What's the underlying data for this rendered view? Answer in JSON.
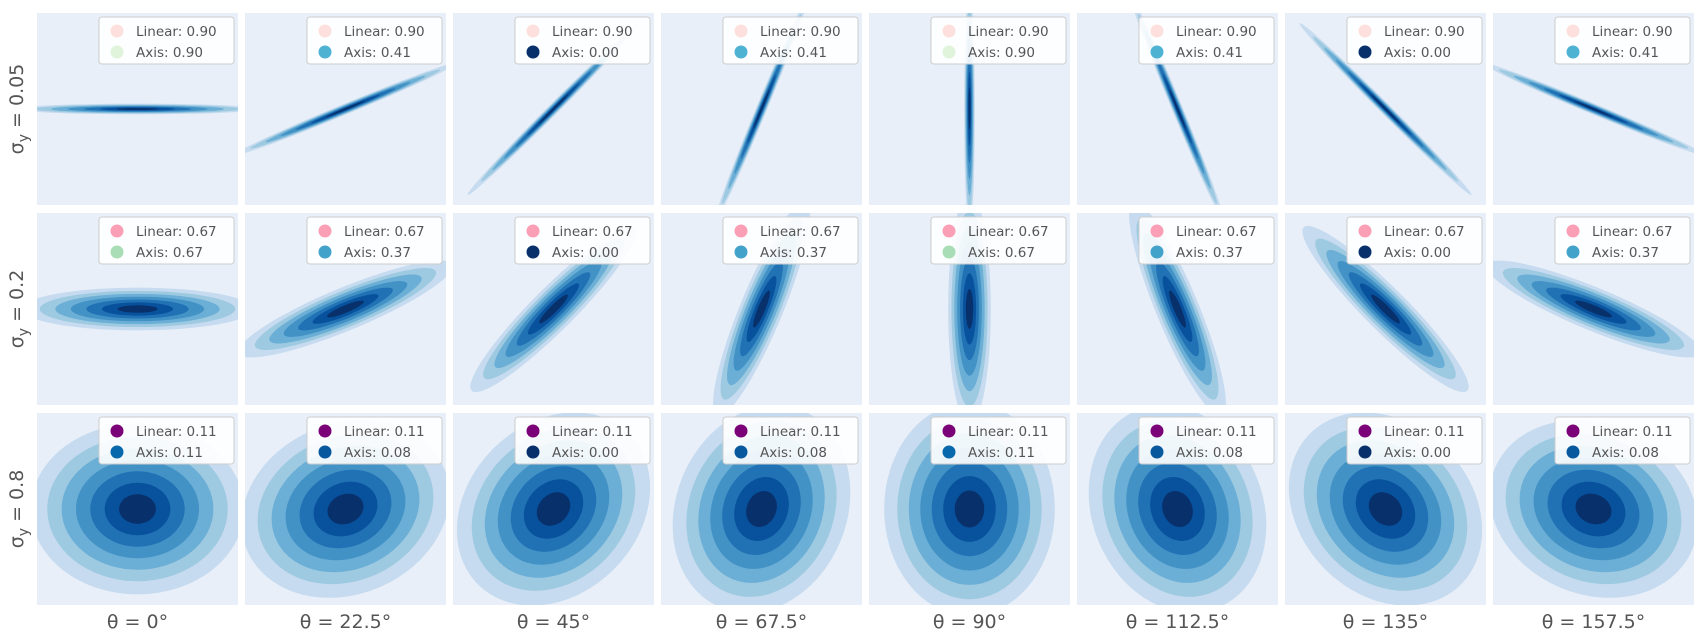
{
  "chart_data": {
    "type": "contour",
    "col_labels": [
      "θ = 0°",
      "θ = 22.5°",
      "θ = 45°",
      "θ = 67.5°",
      "θ = 90°",
      "θ = 112.5°",
      "θ = 135°",
      "θ = 157.5°"
    ],
    "thetas_deg": [
      0,
      22.5,
      45,
      67.5,
      90,
      112.5,
      135,
      157.5
    ],
    "row_label_prefix": "σ",
    "row_label_sub": "y",
    "rows": [
      {
        "sigma_y": "0.05",
        "linear_color": "#fde0dd",
        "linear": [
          "Linear: 0.90",
          "Linear: 0.90",
          "Linear: 0.90",
          "Linear: 0.90",
          "Linear: 0.90",
          "Linear: 0.90",
          "Linear: 0.90",
          "Linear: 0.90"
        ],
        "axis": [
          "Axis: 0.90",
          "Axis: 0.41",
          "Axis: 0.00",
          "Axis: 0.41",
          "Axis: 0.90",
          "Axis: 0.41",
          "Axis: 0.00",
          "Axis: 0.41"
        ],
        "axis_colors": [
          "#e0f3db",
          "#4eb3d3",
          "#08306b",
          "#4eb3d3",
          "#e0f3db",
          "#4eb3d3",
          "#08306b",
          "#4eb3d3"
        ]
      },
      {
        "sigma_y": "0.2",
        "linear_color": "#fa9fb5",
        "linear": [
          "Linear: 0.67",
          "Linear: 0.67",
          "Linear: 0.67",
          "Linear: 0.67",
          "Linear: 0.67",
          "Linear: 0.67",
          "Linear: 0.67",
          "Linear: 0.67"
        ],
        "axis": [
          "Axis: 0.67",
          "Axis: 0.37",
          "Axis: 0.00",
          "Axis: 0.37",
          "Axis: 0.67",
          "Axis: 0.37",
          "Axis: 0.00",
          "Axis: 0.37"
        ],
        "axis_colors": [
          "#a8ddb5",
          "#43a2ca",
          "#08306b",
          "#43a2ca",
          "#a8ddb5",
          "#43a2ca",
          "#08306b",
          "#43a2ca"
        ]
      },
      {
        "sigma_y": "0.8",
        "linear_color": "#7a0177",
        "linear": [
          "Linear: 0.11",
          "Linear: 0.11",
          "Linear: 0.11",
          "Linear: 0.11",
          "Linear: 0.11",
          "Linear: 0.11",
          "Linear: 0.11",
          "Linear: 0.11"
        ],
        "axis": [
          "Axis: 0.11",
          "Axis: 0.08",
          "Axis: 0.00",
          "Axis: 0.08",
          "Axis: 0.11",
          "Axis: 0.08",
          "Axis: 0.00",
          "Axis: 0.08"
        ],
        "axis_colors": [
          "#0868ac",
          "#08589e",
          "#08306b",
          "#08589e",
          "#0868ac",
          "#08589e",
          "#08306b",
          "#08589e"
        ]
      }
    ],
    "contour_colors": [
      "#c6dbef",
      "#9ecae1",
      "#6baed6",
      "#4292c6",
      "#2171b5",
      "#08519c",
      "#08306b"
    ],
    "panel_background": "#e8eff9",
    "sigma_x": 1.0,
    "grid": false
  }
}
